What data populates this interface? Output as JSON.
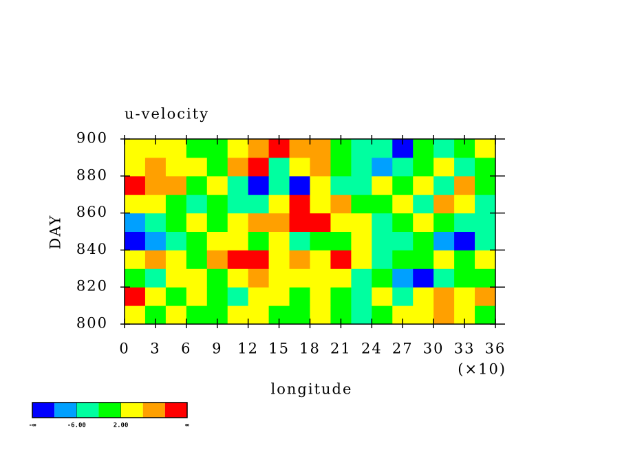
{
  "chart_data": {
    "type": "heatmap",
    "title": "u-velocity",
    "x_label": "longitude",
    "x_multiplier": "(×10)",
    "y_label": "DAY",
    "xlim": [
      0,
      36
    ],
    "xticks": [
      0,
      3,
      6,
      9,
      12,
      15,
      18,
      21,
      24,
      27,
      30,
      33,
      36
    ],
    "ylim": [
      800,
      900
    ],
    "yticks": [
      800,
      820,
      840,
      860,
      880,
      900
    ],
    "x": [
      1,
      3,
      5,
      7,
      9,
      11,
      13,
      15,
      17,
      19,
      21,
      23,
      25,
      27,
      29,
      31,
      33,
      35
    ],
    "y": [
      805,
      815,
      825,
      835,
      845,
      855,
      865,
      875,
      885,
      895
    ],
    "z": [
      [
        2,
        0,
        3,
        1,
        -1,
        4,
        2,
        -2,
        0,
        3,
        1,
        -3,
        0,
        2,
        4,
        7,
        3,
        -1
      ],
      [
        11,
        3,
        -2,
        5,
        1,
        -3,
        3,
        2,
        -1,
        4,
        1,
        -4,
        2,
        -6,
        3,
        6,
        2,
        7
      ],
      [
        1,
        -3,
        4,
        3,
        0,
        5,
        8,
        2,
        3,
        5,
        2,
        -5,
        0,
        -7,
        -11,
        -3,
        -2,
        1
      ],
      [
        4,
        6,
        3,
        -1,
        7,
        12,
        11,
        5,
        8,
        4,
        11,
        3,
        -4,
        0,
        1,
        3,
        -2,
        4
      ],
      [
        -11,
        -7,
        -3,
        0,
        3,
        2,
        -1,
        4,
        -5,
        1,
        -2,
        4,
        -3,
        -6,
        -2,
        -7,
        -11,
        -4
      ],
      [
        -7,
        -4,
        1,
        3,
        -2,
        5,
        7,
        6,
        12,
        11,
        4,
        2,
        -3,
        -1,
        2,
        0,
        -5,
        -3
      ],
      [
        3,
        5,
        -2,
        -5,
        1,
        -3,
        -6,
        4,
        11,
        3,
        6,
        0,
        -2,
        3,
        -4,
        8,
        2,
        -6
      ],
      [
        12,
        7,
        8,
        -1,
        2,
        -3,
        -11,
        -6,
        -11,
        2,
        -3,
        -6,
        3,
        -2,
        5,
        -3,
        6,
        -1
      ],
      [
        3,
        6,
        2,
        5,
        -2,
        9,
        11,
        -3,
        4,
        7,
        -2,
        -6,
        -9,
        -3,
        -1,
        2,
        -4,
        -2
      ],
      [
        2,
        4,
        3,
        -1,
        0,
        4,
        7,
        11,
        6,
        9,
        1,
        -3,
        -6,
        -11,
        -2,
        -4,
        1,
        3
      ]
    ],
    "colorbar": {
      "bounds": [
        -10,
        -6,
        -2,
        2,
        6,
        10
      ],
      "colors": [
        "#0000ff",
        "#00a0ff",
        "#00ffa0",
        "#00ff00",
        "#ffff00",
        "#ffa000",
        "#ff0000"
      ],
      "low_label": "-∞",
      "high_label": "∞",
      "ticks": [
        {
          "value": -6,
          "label": "-6.00"
        },
        {
          "value": 2,
          "label": "2.00"
        }
      ]
    }
  }
}
